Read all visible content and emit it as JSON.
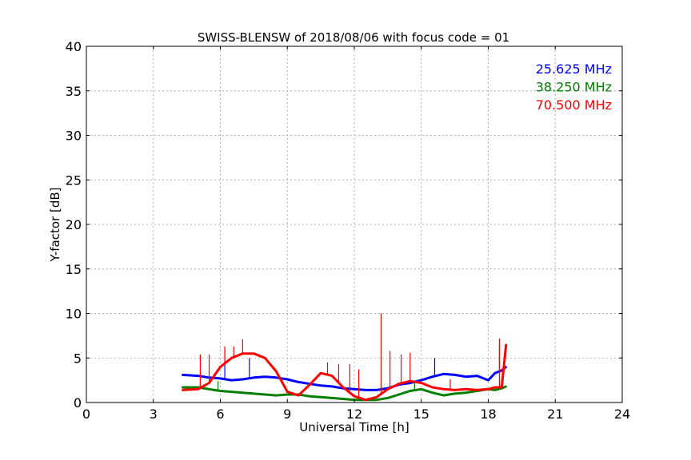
{
  "chart_data": {
    "type": "line",
    "title": "SWISS-BLENSW of 2018/08/06 with focus code = 01",
    "xlabel": "Universal Time [h]",
    "ylabel": "Y-factor [dB]",
    "xlim": [
      0,
      24
    ],
    "ylim": [
      0,
      40
    ],
    "xticks": [
      "0",
      "3",
      "6",
      "9",
      "12",
      "15",
      "18",
      "21",
      "24"
    ],
    "yticks": [
      "0",
      "5",
      "10",
      "15",
      "20",
      "25",
      "30",
      "35",
      "40"
    ],
    "grid": true,
    "legend_position": "top-right",
    "series": [
      {
        "name": "25.625 MHz",
        "color": "#0000ff",
        "x": [
          4.3,
          5.0,
          5.5,
          6.0,
          6.5,
          7.0,
          7.5,
          8.0,
          8.5,
          9.0,
          9.5,
          10.0,
          10.5,
          11.0,
          11.5,
          12.0,
          12.5,
          13.0,
          13.5,
          14.0,
          14.5,
          15.0,
          15.5,
          16.0,
          16.5,
          17.0,
          17.5,
          18.0,
          18.3,
          18.6,
          18.8
        ],
        "y": [
          3.1,
          3.0,
          2.8,
          2.7,
          2.5,
          2.6,
          2.8,
          2.9,
          2.8,
          2.6,
          2.3,
          2.1,
          1.9,
          1.8,
          1.6,
          1.5,
          1.4,
          1.4,
          1.6,
          2.0,
          2.2,
          2.5,
          2.9,
          3.2,
          3.1,
          2.9,
          3.0,
          2.5,
          3.3,
          3.6,
          4.0
        ],
        "spikes": [
          [
            6.2,
            6.0
          ],
          [
            7.3,
            5.0
          ],
          [
            15.6,
            5.0
          ],
          [
            18.5,
            6.5
          ]
        ]
      },
      {
        "name": "38.250 MHz",
        "color": "#008000",
        "x": [
          4.3,
          5.0,
          5.5,
          6.0,
          6.5,
          7.0,
          7.5,
          8.0,
          8.5,
          9.0,
          9.5,
          10.0,
          10.5,
          11.0,
          11.5,
          12.0,
          12.5,
          13.0,
          13.5,
          14.0,
          14.5,
          15.0,
          15.5,
          16.0,
          16.5,
          17.0,
          17.5,
          18.0,
          18.3,
          18.6,
          18.8
        ],
        "y": [
          1.7,
          1.7,
          1.5,
          1.3,
          1.2,
          1.1,
          1.0,
          0.9,
          0.8,
          0.9,
          0.9,
          0.7,
          0.6,
          0.5,
          0.4,
          0.3,
          0.3,
          0.3,
          0.5,
          0.9,
          1.3,
          1.5,
          1.1,
          0.8,
          1.0,
          1.1,
          1.3,
          1.5,
          1.4,
          1.6,
          1.8
        ],
        "spikes": [
          [
            5.9,
            2.4
          ],
          [
            14.7,
            2.2
          ]
        ]
      },
      {
        "name": "70.500 MHz",
        "color": "#ff0000",
        "x": [
          4.3,
          5.0,
          5.5,
          6.0,
          6.5,
          7.0,
          7.5,
          8.0,
          8.5,
          9.0,
          9.5,
          10.0,
          10.5,
          11.0,
          11.5,
          12.0,
          12.5,
          13.0,
          13.5,
          14.0,
          14.5,
          15.0,
          15.5,
          16.0,
          16.5,
          17.0,
          17.5,
          18.0,
          18.3,
          18.6,
          18.8
        ],
        "y": [
          1.4,
          1.5,
          2.2,
          4.0,
          5.0,
          5.5,
          5.5,
          5.0,
          3.5,
          1.2,
          0.8,
          2.0,
          3.3,
          3.0,
          1.7,
          0.7,
          0.3,
          0.6,
          1.5,
          2.1,
          2.4,
          2.2,
          1.7,
          1.5,
          1.4,
          1.5,
          1.4,
          1.5,
          1.7,
          1.7,
          6.5
        ],
        "spikes": [
          [
            5.1,
            5.4
          ],
          [
            5.5,
            5.4
          ],
          [
            6.2,
            6.3
          ],
          [
            6.6,
            6.3
          ],
          [
            7.0,
            7.1
          ],
          [
            10.8,
            4.5
          ],
          [
            11.3,
            4.3
          ],
          [
            11.8,
            4.3
          ],
          [
            12.2,
            3.7
          ],
          [
            13.2,
            10.0
          ],
          [
            13.6,
            5.8
          ],
          [
            14.1,
            5.4
          ],
          [
            14.5,
            5.6
          ],
          [
            16.3,
            2.6
          ],
          [
            18.5,
            7.2
          ]
        ]
      }
    ]
  }
}
